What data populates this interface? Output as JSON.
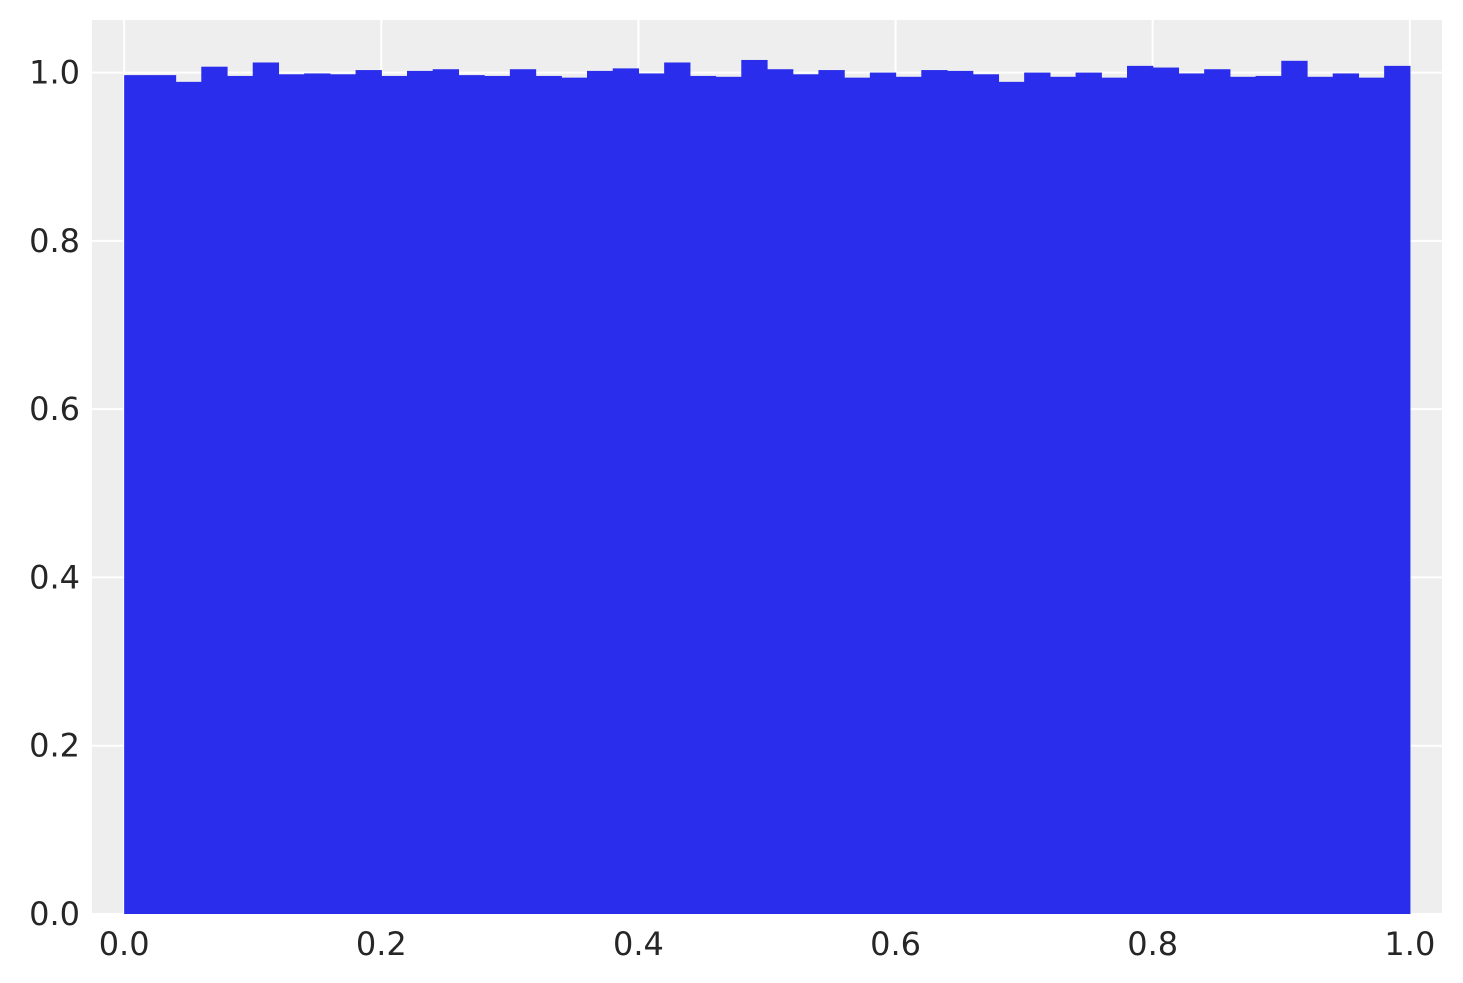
{
  "chart_data": {
    "type": "bar",
    "subtype": "histogram",
    "bins": 50,
    "bin_range": [
      0,
      1
    ],
    "values": [
      0.997,
      0.997,
      0.989,
      1.007,
      0.996,
      1.012,
      0.998,
      0.999,
      0.998,
      1.003,
      0.996,
      1.002,
      1.004,
      0.997,
      0.996,
      1.004,
      0.996,
      0.994,
      1.002,
      1.005,
      0.999,
      1.012,
      0.996,
      0.995,
      1.015,
      1.004,
      0.998,
      1.003,
      0.994,
      1.0,
      0.995,
      1.003,
      1.002,
      0.998,
      0.989,
      1.0,
      0.995,
      1.0,
      0.994,
      1.008,
      1.006,
      0.999,
      1.004,
      0.995,
      0.996,
      1.014,
      0.995,
      0.999,
      0.994,
      1.008
    ],
    "xlim": [
      -0.025,
      1.025
    ],
    "ylim": [
      0,
      1.0625
    ],
    "xticks": [
      0.0,
      0.2,
      0.4,
      0.6,
      0.8,
      1.0
    ],
    "xtick_labels": [
      "0.0",
      "0.2",
      "0.4",
      "0.6",
      "0.8",
      "1.0"
    ],
    "yticks": [
      0.0,
      0.2,
      0.4,
      0.6,
      0.8,
      1.0
    ],
    "ytick_labels": [
      "0.0",
      "0.2",
      "0.4",
      "0.6",
      "0.8",
      "1.0"
    ],
    "title": "",
    "xlabel": "",
    "ylabel": "",
    "grid": true,
    "legend": "none",
    "colors": {
      "bar": "#2a2eec",
      "plot_background": "#eeeeee",
      "grid": "#ffffff",
      "tick_text": "#262626"
    }
  }
}
